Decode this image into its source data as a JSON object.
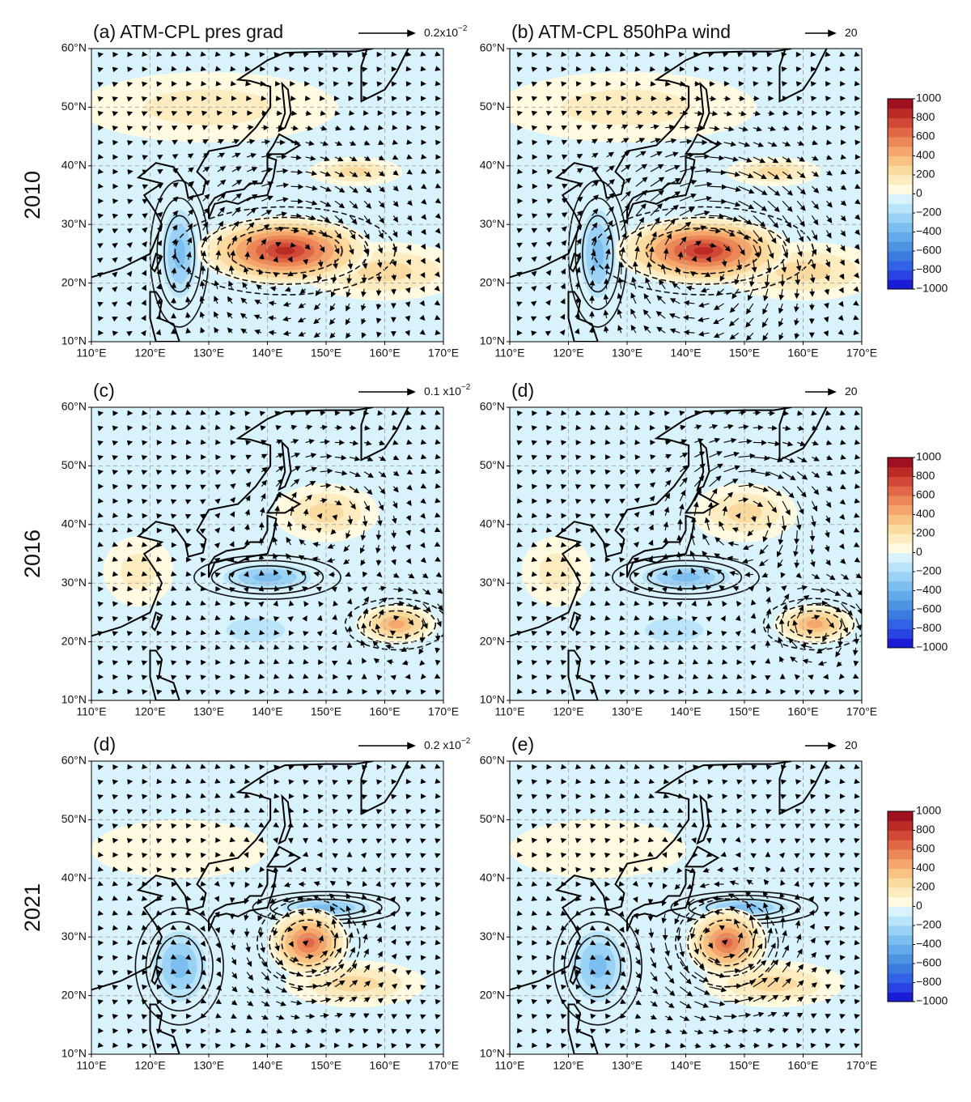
{
  "figure": {
    "row_labels": [
      "2010",
      "2016",
      "2021"
    ],
    "panels": [
      {
        "label": "(a) ATM-CPL pres grad",
        "ref_vector": {
          "base": "0.2x10",
          "exponent": "−2"
        }
      },
      {
        "label": "(b) ATM-CPL  850hPa wind",
        "ref_vector": {
          "label": "20"
        }
      },
      {
        "label": "(c)",
        "ref_vector": {
          "base": "0.1 x10",
          "exponent": "−2"
        }
      },
      {
        "label": "(d)",
        "ref_vector": {
          "label": "20"
        }
      },
      {
        "label": "(d)",
        "ref_vector": {
          "base": "0.2 x10",
          "exponent": "−2"
        }
      },
      {
        "label": "(e)",
        "ref_vector": {
          "label": "20"
        }
      }
    ],
    "xlim": [
      110,
      170
    ],
    "xticks": [
      {
        "value": 110,
        "label": "110°E"
      },
      {
        "value": 120,
        "label": "120°E"
      },
      {
        "value": 130,
        "label": "130°E"
      },
      {
        "value": 140,
        "label": "140°E"
      },
      {
        "value": 150,
        "label": "150°E"
      },
      {
        "value": 160,
        "label": "160°E"
      },
      {
        "value": 170,
        "label": "170°E"
      }
    ],
    "ylim": [
      10,
      60
    ],
    "yticks": [
      {
        "value": 10,
        "label": "10°N"
      },
      {
        "value": 20,
        "label": "20°N"
      },
      {
        "value": 30,
        "label": "30°N"
      },
      {
        "value": 40,
        "label": "40°N"
      },
      {
        "value": 50,
        "label": "50°N"
      },
      {
        "value": 60,
        "label": "60°N"
      }
    ],
    "colorbar": {
      "lim": [
        -1000,
        1000
      ],
      "ticks": [
        {
          "value": -1000,
          "label": "−1000"
        },
        {
          "value": -800,
          "label": "−800"
        },
        {
          "value": -600,
          "label": "−600"
        },
        {
          "value": -400,
          "label": "−400"
        },
        {
          "value": -200,
          "label": "−200"
        },
        0,
        200,
        400,
        600,
        800,
        1000
      ],
      "colors": [
        "#1c1cd8",
        "#2a44e4",
        "#3262e6",
        "#3c7ce0",
        "#4c94e2",
        "#62aaea",
        "#7cbeef",
        "#9ad2f5",
        "#bae4f9",
        "#d8f3fb",
        "#fffae0",
        "#fdecc0",
        "#fbdaa0",
        "#f8c282",
        "#f4a66c",
        "#ec8858",
        "#e06846",
        "#d04836",
        "#bc2a26",
        "#a01020"
      ]
    }
  }
}
